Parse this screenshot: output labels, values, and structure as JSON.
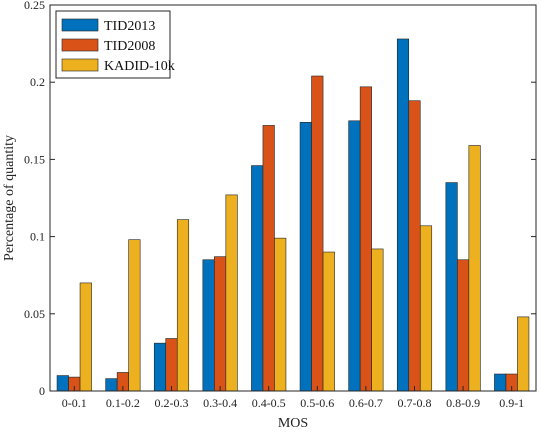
{
  "chart_data": {
    "type": "bar",
    "xlabel": "MOS",
    "ylabel": "Percentage of quantity",
    "ylim": [
      0,
      0.25
    ],
    "yticks": [
      "0",
      "0.05",
      "0.1",
      "0.15",
      "0.2",
      "0.25"
    ],
    "ytick_values": [
      0,
      0.05,
      0.1,
      0.15,
      0.2,
      0.25
    ],
    "grid": false,
    "legend_position": "top-left",
    "categories": [
      "0-0.1",
      "0.1-0.2",
      "0.2-0.3",
      "0.3-0.4",
      "0.4-0.5",
      "0.5-0.6",
      "0.6-0.7",
      "0.7-0.8",
      "0.8-0.9",
      "0.9-1"
    ],
    "series": [
      {
        "name": "TID2013",
        "color": "#0072BD",
        "values": [
          0.01,
          0.008,
          0.031,
          0.085,
          0.146,
          0.174,
          0.175,
          0.228,
          0.135,
          0.011
        ]
      },
      {
        "name": "TID2008",
        "color": "#D95319",
        "values": [
          0.009,
          0.012,
          0.034,
          0.087,
          0.172,
          0.204,
          0.197,
          0.188,
          0.085,
          0.011
        ]
      },
      {
        "name": "KADID-10k",
        "color": "#EDB120",
        "values": [
          0.07,
          0.098,
          0.111,
          0.127,
          0.099,
          0.09,
          0.092,
          0.107,
          0.159,
          0.048
        ]
      }
    ]
  }
}
